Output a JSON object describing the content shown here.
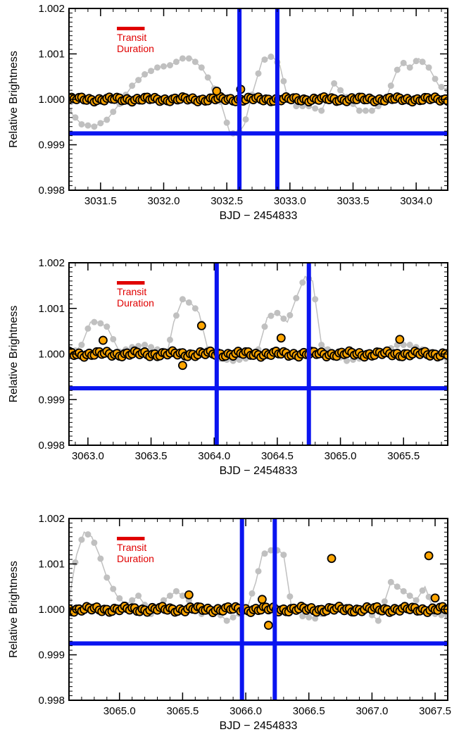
{
  "chart_data": [
    {
      "type": "scatter",
      "xlabel": "BJD − 2454833",
      "ylabel": "Relative Brightness",
      "xlim": [
        3031.25,
        3034.25
      ],
      "ylim": [
        0.998,
        1.002
      ],
      "x_ticks": [
        "3031.5",
        "3032.0",
        "3032.5",
        "3033.0",
        "3033.5",
        "3034.0"
      ],
      "x_tick_values": [
        3031.5,
        3032.0,
        3032.5,
        3033.0,
        3033.5,
        3034.0
      ],
      "y_ticks": [
        "0.998",
        "0.999",
        "1.000",
        "1.001",
        "1.002"
      ],
      "y_tick_values": [
        0.998,
        0.999,
        1.0,
        1.001,
        1.002
      ],
      "annotation": [
        "Transit",
        "Duration"
      ],
      "transit_bar_length_days": 0.22,
      "vertical_lines": [
        3032.6,
        3032.9
      ],
      "horizontal_line": 0.99925,
      "raw_curve": {
        "color": "#c0c0c0",
        "x": [
          3031.25,
          3031.35,
          3031.45,
          3031.55,
          3031.65,
          3031.75,
          3031.85,
          3031.95,
          3032.05,
          3032.15,
          3032.22,
          3032.3,
          3032.38,
          3032.45,
          3032.52,
          3032.58,
          3032.64,
          3032.7,
          3032.78,
          3032.86,
          3032.92,
          3032.98,
          3033.05,
          3033.15,
          3033.25,
          3033.35,
          3033.45,
          3033.55,
          3033.65,
          3033.75,
          3033.85,
          3033.9,
          3033.95,
          3034.02,
          3034.1,
          3034.18,
          3034.25
        ],
        "y": [
          0.99975,
          0.99945,
          0.9994,
          0.99955,
          0.9999,
          1.0003,
          1.00055,
          1.0007,
          1.00075,
          1.0009,
          1.0009,
          1.0007,
          1.00035,
          0.99995,
          0.9993,
          0.9992,
          0.99945,
          1.0001,
          1.00085,
          1.00095,
          1.00075,
          1.00005,
          0.99985,
          0.99985,
          0.99975,
          1.00035,
          1.00005,
          0.99975,
          0.99975,
          0.99995,
          1.00065,
          1.0008,
          1.0007,
          1.0009,
          1.0007,
          1.0003,
          1.0002
        ]
      },
      "detrended": {
        "color": "#ffa500",
        "base": 1.0,
        "amplitude": 5e-05,
        "outliers": [
          {
            "x": 3032.42,
            "y": 1.00018
          },
          {
            "x": 3032.61,
            "y": 1.00022
          }
        ]
      }
    },
    {
      "type": "scatter",
      "xlabel": "BJD − 2454833",
      "ylabel": "Relative Brightness",
      "xlim": [
        3062.85,
        3065.85
      ],
      "ylim": [
        0.998,
        1.002
      ],
      "x_ticks": [
        "3063.0",
        "3063.5",
        "3064.0",
        "3064.5",
        "3065.0",
        "3065.5"
      ],
      "x_tick_values": [
        3063.0,
        3063.5,
        3064.0,
        3064.5,
        3065.0,
        3065.5
      ],
      "y_ticks": [
        "0.998",
        "0.999",
        "1.000",
        "1.001",
        "1.002"
      ],
      "y_tick_values": [
        0.998,
        0.999,
        1.0,
        1.001,
        1.002
      ],
      "annotation": [
        "Transit",
        "Duration"
      ],
      "transit_bar_length_days": 0.22,
      "vertical_lines": [
        3064.02,
        3064.75
      ],
      "horizontal_line": 0.99925,
      "raw_curve": {
        "color": "#c0c0c0",
        "x": [
          3062.85,
          3062.95,
          3063.02,
          3063.08,
          3063.15,
          3063.25,
          3063.35,
          3063.45,
          3063.55,
          3063.63,
          3063.68,
          3063.75,
          3063.82,
          3063.88,
          3063.95,
          3064.05,
          3064.15,
          3064.25,
          3064.35,
          3064.42,
          3064.5,
          3064.58,
          3064.66,
          3064.72,
          3064.78,
          3064.85,
          3064.95,
          3065.05,
          3065.15,
          3065.25,
          3065.35,
          3065.45,
          3065.55,
          3065.65,
          3065.75,
          3065.85
        ],
        "y": [
          0.99995,
          1.0002,
          1.0007,
          1.0007,
          1.0006,
          1.00005,
          1.00015,
          1.0002,
          1.0001,
          1.00005,
          1.0007,
          1.0012,
          1.0011,
          1.0009,
          1.0001,
          0.9999,
          0.99985,
          0.9999,
          1.0001,
          1.0008,
          1.0009,
          1.0007,
          1.0013,
          1.0017,
          1.0016,
          1.0002,
          1.0,
          0.99985,
          0.9999,
          1.0,
          1.00005,
          1.0002,
          1.0002,
          1.0001,
          1.0,
          0.99985
        ]
      },
      "detrended": {
        "color": "#ffa500",
        "base": 1.0,
        "amplitude": 6e-05,
        "outliers": [
          {
            "x": 3063.12,
            "y": 1.0003
          },
          {
            "x": 3063.75,
            "y": 0.99975
          },
          {
            "x": 3063.9,
            "y": 1.00062
          },
          {
            "x": 3064.53,
            "y": 1.00035
          },
          {
            "x": 3065.47,
            "y": 1.00032
          }
        ]
      }
    },
    {
      "type": "scatter",
      "xlabel": "BJD − 2454833",
      "ylabel": "Relative Brightness",
      "xlim": [
        3064.6,
        3067.6
      ],
      "ylim": [
        0.998,
        1.002
      ],
      "x_ticks": [
        "3065.0",
        "3065.5",
        "3066.0",
        "3066.5",
        "3067.0",
        "3067.5"
      ],
      "x_tick_values": [
        3065.0,
        3065.5,
        3066.0,
        3066.5,
        3067.0,
        3067.5
      ],
      "y_ticks": [
        "0.998",
        "0.999",
        "1.000",
        "1.001",
        "1.002"
      ],
      "y_tick_values": [
        0.998,
        0.999,
        1.0,
        1.001,
        1.002
      ],
      "annotation": [
        "Transit",
        "Duration"
      ],
      "transit_bar_length_days": 0.22,
      "vertical_lines": [
        3065.97,
        3066.23
      ],
      "horizontal_line": 0.99925,
      "raw_curve": {
        "color": "#c0c0c0",
        "x": [
          3064.6,
          3064.66,
          3064.72,
          3064.78,
          3064.84,
          3064.9,
          3064.98,
          3065.05,
          3065.15,
          3065.25,
          3065.35,
          3065.45,
          3065.55,
          3065.65,
          3065.75,
          3065.85,
          3065.95,
          3066.02,
          3066.08,
          3066.13,
          3066.2,
          3066.26,
          3066.3,
          3066.36,
          3066.45,
          3066.55,
          3066.65,
          3066.75,
          3066.85,
          3066.95,
          3067.05,
          3067.15,
          3067.25,
          3067.35,
          3067.42,
          3067.5,
          3067.6
        ],
        "y": [
          1.0002,
          1.0012,
          1.0017,
          1.0016,
          1.0012,
          1.0007,
          1.0003,
          1.0001,
          1.0003,
          0.9999,
          1.0002,
          1.0004,
          1.0002,
          0.9999,
          1.0,
          0.99975,
          0.9999,
          1.0001,
          1.0006,
          1.0012,
          1.0013,
          1.0013,
          1.0012,
          1.0001,
          0.99985,
          0.9998,
          1.0,
          1.0,
          0.9999,
          1.0,
          0.99975,
          1.0006,
          1.0004,
          1.0002,
          1.0005,
          0.9999,
          0.99985
        ]
      },
      "detrended": {
        "color": "#ffa500",
        "base": 1.0,
        "amplitude": 6e-05,
        "outliers": [
          {
            "x": 3065.55,
            "y": 1.00032
          },
          {
            "x": 3066.13,
            "y": 1.00022
          },
          {
            "x": 3066.18,
            "y": 0.99965
          },
          {
            "x": 3066.68,
            "y": 1.00112
          },
          {
            "x": 3067.45,
            "y": 1.00118
          },
          {
            "x": 3067.5,
            "y": 1.00025
          }
        ]
      }
    }
  ],
  "colors": {
    "transit_marker": "#e00000",
    "guide_lines": "#0a14f0",
    "frame": "#000000"
  }
}
